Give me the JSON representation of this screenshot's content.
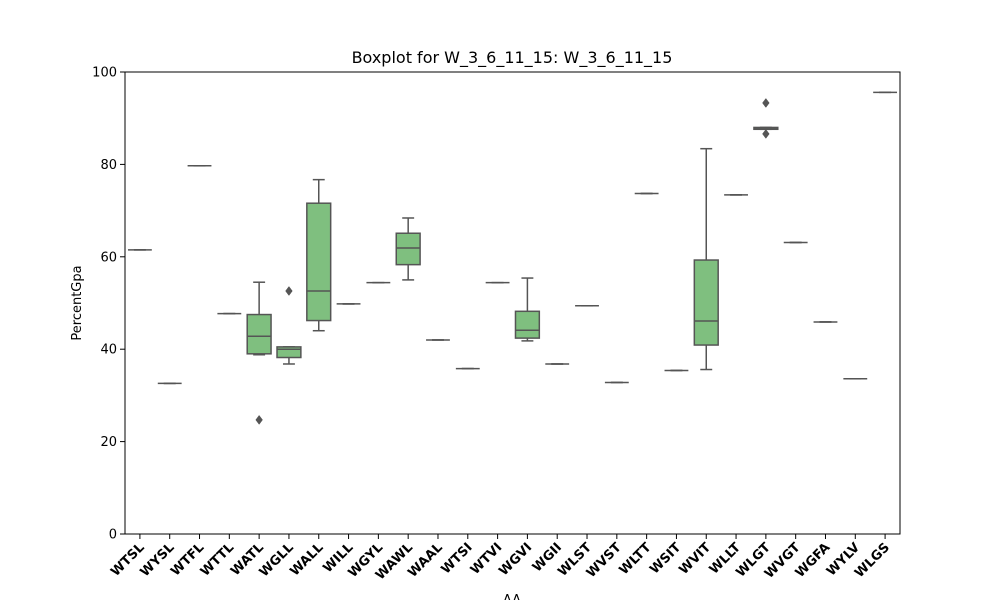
{
  "chart_data": {
    "type": "box",
    "title": "Boxplot for W_3_6_11_15: W_3_6_11_15",
    "xlabel": "AA",
    "ylabel": "PercentGpa",
    "ylim": [
      0,
      100
    ],
    "yticks": [
      "0",
      "20",
      "40",
      "60",
      "80",
      "100"
    ],
    "grid": false,
    "colors": {
      "box_fill": "#7fbf7f",
      "line": "#555555"
    },
    "categories": [
      "WTSL",
      "WYSL",
      "WTFL",
      "WTTL",
      "WATL",
      "WGLL",
      "WALL",
      "WILL",
      "WGYL",
      "WAWL",
      "WAAL",
      "WTSI",
      "WTVI",
      "WGVI",
      "WGII",
      "WLST",
      "WVST",
      "WLTT",
      "WSIT",
      "WVIT",
      "WLLT",
      "WLGT",
      "WVGT",
      "WGFA",
      "WYLV",
      "WLGS"
    ],
    "boxes": [
      {
        "min": 61.5,
        "q1": 61.5,
        "median": 61.5,
        "q3": 61.5,
        "max": 61.5,
        "outliers": []
      },
      {
        "min": 32.6,
        "q1": 32.6,
        "median": 32.6,
        "q3": 32.6,
        "max": 32.6,
        "outliers": []
      },
      {
        "min": 79.7,
        "q1": 79.7,
        "median": 79.7,
        "q3": 79.7,
        "max": 79.7,
        "outliers": []
      },
      {
        "min": 47.7,
        "q1": 47.7,
        "median": 47.7,
        "q3": 47.7,
        "max": 47.7,
        "outliers": []
      },
      {
        "min": 38.8,
        "q1": 39.0,
        "median": 42.8,
        "q3": 47.5,
        "max": 54.5,
        "outliers": [
          24.7
        ]
      },
      {
        "min": 36.8,
        "q1": 38.2,
        "median": 40.0,
        "q3": 40.5,
        "max": 40.5,
        "outliers": [
          52.6
        ]
      },
      {
        "min": 44.0,
        "q1": 46.2,
        "median": 52.6,
        "q3": 71.6,
        "max": 76.7,
        "outliers": []
      },
      {
        "min": 49.8,
        "q1": 49.8,
        "median": 49.8,
        "q3": 49.8,
        "max": 49.8,
        "outliers": []
      },
      {
        "min": 54.4,
        "q1": 54.4,
        "median": 54.4,
        "q3": 54.4,
        "max": 54.4,
        "outliers": []
      },
      {
        "min": 55.0,
        "q1": 58.3,
        "median": 61.9,
        "q3": 65.1,
        "max": 68.4,
        "outliers": []
      },
      {
        "min": 42.0,
        "q1": 42.0,
        "median": 42.0,
        "q3": 42.0,
        "max": 42.0,
        "outliers": []
      },
      {
        "min": 35.8,
        "q1": 35.8,
        "median": 35.8,
        "q3": 35.8,
        "max": 35.8,
        "outliers": []
      },
      {
        "min": 54.4,
        "q1": 54.4,
        "median": 54.4,
        "q3": 54.4,
        "max": 54.4,
        "outliers": []
      },
      {
        "min": 41.8,
        "q1": 42.4,
        "median": 44.1,
        "q3": 48.2,
        "max": 55.4,
        "outliers": []
      },
      {
        "min": 36.8,
        "q1": 36.8,
        "median": 36.8,
        "q3": 36.8,
        "max": 36.8,
        "outliers": []
      },
      {
        "min": 49.4,
        "q1": 49.4,
        "median": 49.4,
        "q3": 49.4,
        "max": 49.4,
        "outliers": []
      },
      {
        "min": 32.8,
        "q1": 32.8,
        "median": 32.8,
        "q3": 32.8,
        "max": 32.8,
        "outliers": []
      },
      {
        "min": 73.7,
        "q1": 73.7,
        "median": 73.7,
        "q3": 73.7,
        "max": 73.7,
        "outliers": []
      },
      {
        "min": 35.4,
        "q1": 35.4,
        "median": 35.4,
        "q3": 35.4,
        "max": 35.4,
        "outliers": []
      },
      {
        "min": 35.6,
        "q1": 40.9,
        "median": 46.1,
        "q3": 59.3,
        "max": 83.4,
        "outliers": []
      },
      {
        "min": 73.4,
        "q1": 73.4,
        "median": 73.4,
        "q3": 73.4,
        "max": 73.4,
        "outliers": []
      },
      {
        "min": 87.6,
        "q1": 87.6,
        "median": 87.9,
        "q3": 88.0,
        "max": 88.0,
        "outliers": [
          86.6,
          93.3
        ]
      },
      {
        "min": 63.1,
        "q1": 63.1,
        "median": 63.1,
        "q3": 63.1,
        "max": 63.1,
        "outliers": []
      },
      {
        "min": 45.9,
        "q1": 45.9,
        "median": 45.9,
        "q3": 45.9,
        "max": 45.9,
        "outliers": []
      },
      {
        "min": 33.6,
        "q1": 33.6,
        "median": 33.6,
        "q3": 33.6,
        "max": 33.6,
        "outliers": []
      },
      {
        "min": 95.6,
        "q1": 95.6,
        "median": 95.6,
        "q3": 95.6,
        "max": 95.6,
        "outliers": []
      }
    ]
  }
}
